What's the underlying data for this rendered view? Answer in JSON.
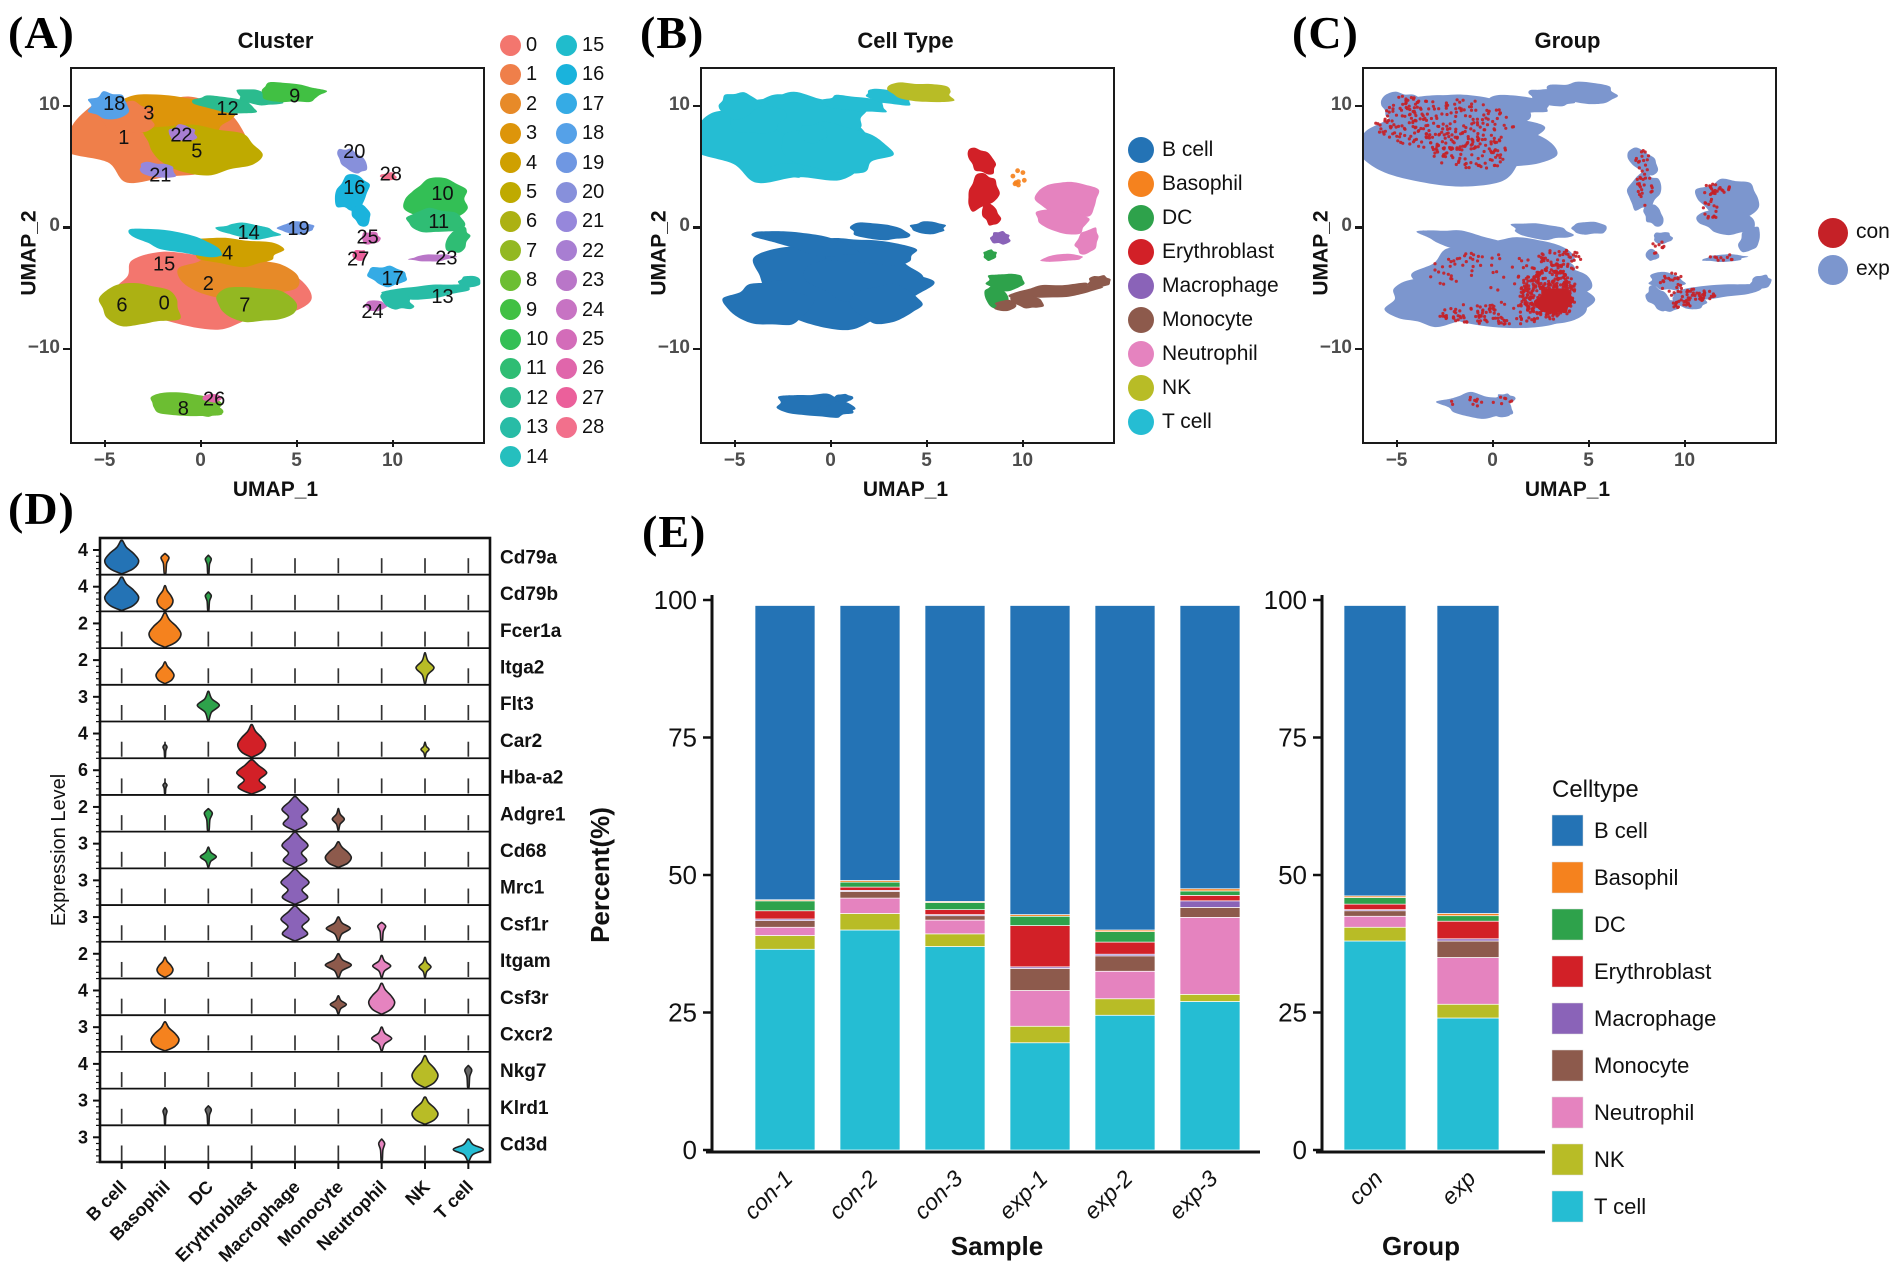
{
  "panels": {
    "A": {
      "label": "(A)",
      "title": "Cluster",
      "xlabel": "UMAP_1",
      "ylabel": "UMAP_2",
      "xticks": [
        "−5",
        "0",
        "5",
        "10"
      ],
      "yticks": [
        "10",
        "0",
        "−10"
      ]
    },
    "B": {
      "label": "(B)",
      "title": "Cell Type",
      "xlabel": "UMAP_1",
      "ylabel": "UMAP_2",
      "xticks": [
        "−5",
        "0",
        "5",
        "10"
      ],
      "yticks": [
        "10",
        "0",
        "−10"
      ]
    },
    "C": {
      "label": "(C)",
      "title": "Group",
      "xlabel": "UMAP_1",
      "ylabel": "UMAP_2",
      "xticks": [
        "−5",
        "0",
        "5",
        "10"
      ],
      "yticks": [
        "10",
        "0",
        "−10"
      ]
    },
    "D": {
      "label": "(D)",
      "ylabel": "Expression Level"
    },
    "E": {
      "label": "(E)",
      "ylabel": "Percent(%)",
      "left_xlabel": "Sample",
      "right_xlabel": "Group",
      "legend_title": "Celltype"
    }
  },
  "colors": {
    "celltypes": {
      "B cell": "#2473B5",
      "Basophil": "#F5821E",
      "DC": "#2EA24B",
      "Erythroblast": "#D22027",
      "Macrophage": "#8A63B8",
      "Monocyte": "#8D5A4C",
      "Neutrophil": "#E583BF",
      "NK": "#B8BC26",
      "T cell": "#25BDD3"
    },
    "groups": {
      "con": "#C52127",
      "exp": "#7C96CE"
    }
  },
  "chart_data": [
    {
      "id": "umap-cluster",
      "type": "scatter",
      "title": "Cluster",
      "xlabel": "UMAP_1",
      "ylabel": "UMAP_2",
      "xlim": [
        -6.8,
        14.6
      ],
      "ylim": [
        -17.5,
        13.2
      ],
      "xticks": [
        -5,
        0,
        5,
        10
      ],
      "yticks": [
        10,
        0,
        -10
      ],
      "clusters": [
        {
          "id": "0",
          "color": "#F3766E",
          "lx": -2.0,
          "ly": -6.0
        },
        {
          "id": "1",
          "color": "#EF7F4A",
          "lx": -4.1,
          "ly": 7.6
        },
        {
          "id": "2",
          "color": "#E78A28",
          "lx": 0.3,
          "ly": -4.4
        },
        {
          "id": "3",
          "color": "#DD950A",
          "lx": -2.8,
          "ly": 9.6
        },
        {
          "id": "4",
          "color": "#CFA000",
          "lx": 1.3,
          "ly": -1.9
        },
        {
          "id": "5",
          "color": "#BFAA00",
          "lx": -0.3,
          "ly": 6.5
        },
        {
          "id": "6",
          "color": "#ACB113",
          "lx": -4.2,
          "ly": -6.2
        },
        {
          "id": "7",
          "color": "#93B822",
          "lx": 2.2,
          "ly": -6.2
        },
        {
          "id": "8",
          "color": "#6CBE32",
          "lx": -1.0,
          "ly": -14.7
        },
        {
          "id": "9",
          "color": "#41C043",
          "lx": 4.8,
          "ly": 11.0
        },
        {
          "id": "10",
          "color": "#33BF55",
          "lx": 12.5,
          "ly": 3.0
        },
        {
          "id": "11",
          "color": "#2FBD74",
          "lx": 12.3,
          "ly": 0.7
        },
        {
          "id": "12",
          "color": "#2BBB8E",
          "lx": 1.3,
          "ly": 10.0
        },
        {
          "id": "13",
          "color": "#28BCA6",
          "lx": 12.5,
          "ly": -5.5
        },
        {
          "id": "14",
          "color": "#25BFBE",
          "lx": 2.4,
          "ly": -0.2
        },
        {
          "id": "15",
          "color": "#20BCCC",
          "lx": -2.0,
          "ly": -2.8
        },
        {
          "id": "16",
          "color": "#1AB3DC",
          "lx": 7.9,
          "ly": 3.5
        },
        {
          "id": "17",
          "color": "#35ABE5",
          "lx": 9.9,
          "ly": -4.0
        },
        {
          "id": "18",
          "color": "#55A1E8",
          "lx": -4.6,
          "ly": 10.4
        },
        {
          "id": "19",
          "color": "#6F97E2",
          "lx": 5.0,
          "ly": 0.1
        },
        {
          "id": "20",
          "color": "#8790DB",
          "lx": 7.9,
          "ly": 6.45
        },
        {
          "id": "21",
          "color": "#9687DB",
          "lx": -2.2,
          "ly": 4.5
        },
        {
          "id": "22",
          "color": "#A87ED2",
          "lx": -1.1,
          "ly": 7.8
        },
        {
          "id": "23",
          "color": "#B976C8",
          "lx": 12.7,
          "ly": -2.3
        },
        {
          "id": "24",
          "color": "#C773C3",
          "lx": 8.85,
          "ly": -6.7
        },
        {
          "id": "25",
          "color": "#D36CB9",
          "lx": 8.6,
          "ly": -0.6
        },
        {
          "id": "26",
          "color": "#E066AB",
          "lx": 0.6,
          "ly": -13.9
        },
        {
          "id": "27",
          "color": "#EB609B",
          "lx": 8.1,
          "ly": -2.4
        },
        {
          "id": "28",
          "color": "#F2708C",
          "lx": 9.8,
          "ly": 4.6
        }
      ]
    },
    {
      "id": "umap-celltype",
      "type": "scatter",
      "title": "Cell Type",
      "xlabel": "UMAP_1",
      "ylabel": "UMAP_2",
      "legend": [
        "B cell",
        "Basophil",
        "DC",
        "Erythroblast",
        "Macrophage",
        "Monocyte",
        "Neutrophil",
        "NK",
        "T cell"
      ]
    },
    {
      "id": "umap-group",
      "type": "scatter",
      "title": "Group",
      "xlabel": "UMAP_1",
      "ylabel": "UMAP_2",
      "legend": [
        "con",
        "exp"
      ]
    },
    {
      "id": "violin-markers",
      "type": "violin",
      "ylabel": "Expression Level",
      "celltypes": [
        "B cell",
        "Basophil",
        "DC",
        "Erythroblast",
        "Macrophage",
        "Monocyte",
        "Neutrophil",
        "NK",
        "T cell"
      ],
      "genes": [
        {
          "name": "Cd79a",
          "ymax": "4",
          "violins": [
            {
              "cell": "B cell",
              "h": 0.92,
              "w": 17,
              "s": "bulb"
            },
            {
              "cell": "Basophil",
              "h": 0.55,
              "w": 4,
              "s": "spike"
            },
            {
              "cell": "DC",
              "h": 0.5,
              "w": 3,
              "s": "spike"
            }
          ]
        },
        {
          "name": "Cd79b",
          "ymax": "4",
          "violins": [
            {
              "cell": "B cell",
              "h": 0.92,
              "w": 17,
              "s": "bulb"
            },
            {
              "cell": "Basophil",
              "h": 0.68,
              "w": 8,
              "s": "bulb"
            },
            {
              "cell": "DC",
              "h": 0.5,
              "w": 3,
              "s": "spike"
            }
          ]
        },
        {
          "name": "Fcer1a",
          "ymax": "2",
          "violins": [
            {
              "cell": "Basophil",
              "h": 0.95,
              "w": 16,
              "s": "bulb"
            }
          ]
        },
        {
          "name": "Itga2",
          "ymax": "2",
          "violins": [
            {
              "cell": "Basophil",
              "h": 0.6,
              "w": 9,
              "s": "bulb"
            },
            {
              "cell": "NK",
              "h": 0.85,
              "w": 9,
              "s": "diamond"
            }
          ]
        },
        {
          "name": "Flt3",
          "ymax": "3",
          "violins": [
            {
              "cell": "DC",
              "h": 0.8,
              "w": 11,
              "s": "diamond"
            }
          ]
        },
        {
          "name": "Car2",
          "ymax": "4",
          "violins": [
            {
              "cell": "Erythroblast",
              "h": 0.9,
              "w": 14,
              "s": "bulb"
            },
            {
              "cell": "Basophil",
              "h": 0.35,
              "w": 2,
              "s": "spike",
              "color": "#666666"
            },
            {
              "cell": "NK",
              "h": 0.4,
              "w": 4,
              "s": "diamond"
            }
          ]
        },
        {
          "name": "Hba-a2",
          "ymax": "6",
          "violins": [
            {
              "cell": "Erythroblast",
              "h": 0.95,
              "w": 15,
              "s": "hourglass"
            },
            {
              "cell": "Basophil",
              "h": 0.3,
              "w": 2,
              "s": "spike",
              "color": "#666666"
            }
          ]
        },
        {
          "name": "Adgre1",
          "ymax": "2",
          "violins": [
            {
              "cell": "DC",
              "h": 0.6,
              "w": 4,
              "s": "spike"
            },
            {
              "cell": "Macrophage",
              "h": 0.95,
              "w": 13,
              "s": "hourglass"
            },
            {
              "cell": "Monocyte",
              "h": 0.6,
              "w": 6,
              "s": "diamond"
            }
          ]
        },
        {
          "name": "Cd68",
          "ymax": "3",
          "violins": [
            {
              "cell": "DC",
              "h": 0.55,
              "w": 8,
              "s": "diamond"
            },
            {
              "cell": "Macrophage",
              "h": 0.98,
              "w": 13,
              "s": "hourglass"
            },
            {
              "cell": "Monocyte",
              "h": 0.7,
              "w": 13,
              "s": "bulb"
            }
          ]
        },
        {
          "name": "Mrc1",
          "ymax": "3",
          "violins": [
            {
              "cell": "Macrophage",
              "h": 0.97,
              "w": 14,
              "s": "hourglass"
            }
          ]
        },
        {
          "name": "Csf1r",
          "ymax": "3",
          "violins": [
            {
              "cell": "Macrophage",
              "h": 0.97,
              "w": 14,
              "s": "hourglass"
            },
            {
              "cell": "Monocyte",
              "h": 0.65,
              "w": 12,
              "s": "diamond"
            },
            {
              "cell": "Neutrophil",
              "h": 0.5,
              "w": 4,
              "s": "spike"
            }
          ]
        },
        {
          "name": "Itgam",
          "ymax": "2",
          "violins": [
            {
              "cell": "Basophil",
              "h": 0.55,
              "w": 8,
              "s": "bulb"
            },
            {
              "cell": "Monocyte",
              "h": 0.65,
              "w": 13,
              "s": "diamond"
            },
            {
              "cell": "Neutrophil",
              "h": 0.6,
              "w": 9,
              "s": "diamond"
            },
            {
              "cell": "NK",
              "h": 0.55,
              "w": 6,
              "s": "diamond"
            }
          ]
        },
        {
          "name": "Csf3r",
          "ymax": "4",
          "violins": [
            {
              "cell": "Monocyte",
              "h": 0.5,
              "w": 8,
              "s": "diamond"
            },
            {
              "cell": "Neutrophil",
              "h": 0.85,
              "w": 13,
              "s": "bulb"
            }
          ]
        },
        {
          "name": "Cxcr2",
          "ymax": "3",
          "violins": [
            {
              "cell": "Basophil",
              "h": 0.8,
              "w": 14,
              "s": "bulb"
            },
            {
              "cell": "Neutrophil",
              "h": 0.65,
              "w": 10,
              "s": "diamond"
            }
          ]
        },
        {
          "name": "Nkg7",
          "ymax": "4",
          "violins": [
            {
              "cell": "NK",
              "h": 0.88,
              "w": 13,
              "s": "bulb"
            },
            {
              "cell": "T cell",
              "h": 0.6,
              "w": 3.5,
              "s": "spike",
              "color": "#666666"
            }
          ]
        },
        {
          "name": "Klrd1",
          "ymax": "3",
          "violins": [
            {
              "cell": "Basophil",
              "h": 0.45,
              "w": 2,
              "s": "spike",
              "color": "#666666"
            },
            {
              "cell": "DC",
              "h": 0.5,
              "w": 3,
              "s": "spike",
              "color": "#666666"
            },
            {
              "cell": "NK",
              "h": 0.75,
              "w": 13,
              "s": "bulb"
            }
          ]
        },
        {
          "name": "Cd3d",
          "ymax": "3",
          "violins": [
            {
              "cell": "Neutrophil",
              "h": 0.6,
              "w": 3,
              "s": "spike"
            },
            {
              "cell": "T cell",
              "h": 0.6,
              "w": 15,
              "s": "diamond"
            }
          ]
        }
      ]
    },
    {
      "id": "percent-by-sample",
      "type": "bar",
      "stacked": true,
      "xlabel": "Sample",
      "ylabel": "Percent(%)",
      "ylim": [
        0,
        100
      ],
      "yticks": [
        100,
        75,
        50,
        25,
        0
      ],
      "stack_order_bottom_to_top": [
        "T cell",
        "NK",
        "Neutrophil",
        "Monocyte",
        "Macrophage",
        "Erythroblast",
        "DC",
        "Basophil",
        "B cell"
      ],
      "bars": [
        {
          "label": "con-1",
          "values": [
            36.5,
            2.5,
            1.5,
            1.2,
            0.3,
            1.5,
            1.8,
            0.2,
            53.5
          ]
        },
        {
          "label": "con-2",
          "values": [
            40,
            3,
            2.8,
            1.2,
            0.2,
            0.6,
            0.9,
            0.3,
            50
          ]
        },
        {
          "label": "con-3",
          "values": [
            37,
            2.3,
            2.5,
            0.8,
            0.2,
            0.9,
            1.3,
            0.2,
            53.8
          ]
        },
        {
          "label": "exp-1",
          "values": [
            19.5,
            3,
            6.5,
            4,
            0.3,
            7.5,
            1.7,
            0.3,
            56.2
          ]
        },
        {
          "label": "exp-2",
          "values": [
            24.5,
            3,
            5,
            2.8,
            0.3,
            2.2,
            1.9,
            0.3,
            59
          ]
        },
        {
          "label": "exp-3",
          "values": [
            27,
            1.3,
            14,
            1.8,
            1.2,
            1,
            0.8,
            0.4,
            51.5
          ]
        }
      ]
    },
    {
      "id": "percent-by-group",
      "type": "bar",
      "stacked": true,
      "xlabel": "Group",
      "ylabel": "Percent(%)",
      "ylim": [
        0,
        100
      ],
      "yticks": [
        100,
        75,
        50,
        25,
        0
      ],
      "stack_order_bottom_to_top": [
        "T cell",
        "NK",
        "Neutrophil",
        "Monocyte",
        "Macrophage",
        "Erythroblast",
        "DC",
        "Basophil",
        "B cell"
      ],
      "legend_title": "Celltype",
      "legend": [
        "B cell",
        "Basophil",
        "DC",
        "Erythroblast",
        "Macrophage",
        "Monocyte",
        "Neutrophil",
        "NK",
        "T cell"
      ],
      "bars": [
        {
          "label": "con",
          "values": [
            38,
            2.5,
            2,
            1,
            0.2,
            1,
            1.2,
            0.3,
            52.8
          ]
        },
        {
          "label": "exp",
          "values": [
            24,
            2.5,
            8.5,
            3,
            0.4,
            3.2,
            1,
            0.4,
            56
          ]
        }
      ]
    }
  ]
}
